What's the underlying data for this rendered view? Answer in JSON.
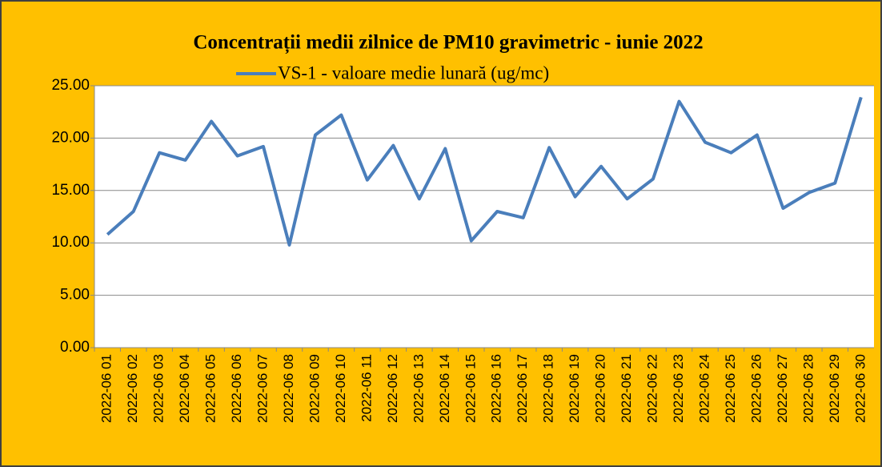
{
  "chart_data": {
    "type": "line",
    "title": "Concentrații  medii zilnice de PM10 gravimetric - iunie 2022",
    "categories": [
      "2022-06 01",
      "2022-06 02",
      "2022-06 03",
      "2022-06 04",
      "2022-06 05",
      "2022-06 06",
      "2022-06 07",
      "2022-06 08",
      "2022-06 09",
      "2022-06 10",
      "2022-06 11",
      "2022-06 12",
      "2022-06 13",
      "2022-06 14",
      "2022-06 15",
      "2022-06 16",
      "2022-06 17",
      "2022-06 18",
      "2022-06 19",
      "2022-06 20",
      "2022-06 21",
      "2022-06 22",
      "2022-06 23",
      "2022-06 24",
      "2022-06 25",
      "2022-06 26",
      "2022-06 27",
      "2022-06 28",
      "2022-06 29",
      "2022-06 30"
    ],
    "series": [
      {
        "name": "VS-1 - valoare medie lunară (ug/mc)",
        "color": "#4a7ebb",
        "values": [
          10.8,
          13.0,
          18.6,
          17.9,
          21.6,
          18.3,
          19.2,
          9.8,
          20.3,
          22.2,
          16.0,
          19.3,
          14.2,
          19.0,
          10.2,
          13.0,
          12.4,
          19.1,
          14.4,
          17.3,
          14.2,
          16.1,
          23.5,
          19.6,
          18.6,
          20.3,
          13.3,
          14.8,
          15.7,
          23.9
        ]
      }
    ],
    "ylim": [
      0,
      25
    ],
    "yticks": [
      {
        "value": 0,
        "label": "0.00"
      },
      {
        "value": 5,
        "label": "5.00"
      },
      {
        "value": 10,
        "label": "10.00"
      },
      {
        "value": 15,
        "label": "15.00"
      },
      {
        "value": 20,
        "label": "20.00"
      },
      {
        "value": 25,
        "label": "25.00"
      }
    ],
    "grid": true
  }
}
